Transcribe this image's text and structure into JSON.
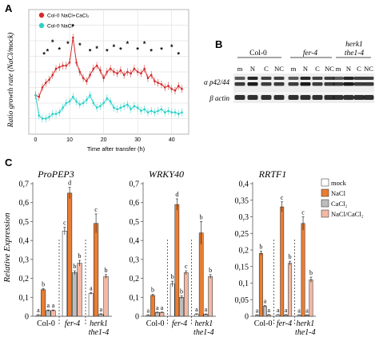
{
  "panel_labels": {
    "a": "A",
    "b": "B",
    "c": "C"
  },
  "chart_data": [
    {
      "type": "line",
      "ylabel": "Ratio growth rate (NaCl/mock)",
      "xlabel": "Time after transfer (h)",
      "xlim": [
        -2,
        45
      ],
      "ylim": [
        0.2,
        1.0
      ],
      "xticks": [
        "0",
        "10",
        "20",
        "30",
        "40"
      ],
      "grid": true,
      "legend_position": "top-left",
      "x": [
        0,
        1,
        2,
        3,
        4,
        5,
        6,
        7,
        8,
        9,
        10,
        11,
        12,
        13,
        14,
        15,
        16,
        17,
        18,
        19,
        20,
        21,
        22,
        23,
        24,
        25,
        26,
        27,
        28,
        29,
        30,
        31,
        32,
        33,
        34,
        35,
        36,
        37,
        38,
        39,
        40,
        41,
        42,
        43
      ],
      "series": [
        {
          "name": "Col-0 NaCl+CaCl₂",
          "color": "#d42a2a",
          "values": [
            0.45,
            0.44,
            0.5,
            0.53,
            0.55,
            0.58,
            0.62,
            0.63,
            0.64,
            0.64,
            0.66,
            0.82,
            0.66,
            0.6,
            0.56,
            0.54,
            0.58,
            0.62,
            0.64,
            0.61,
            0.56,
            0.6,
            0.62,
            0.6,
            0.59,
            0.61,
            0.58,
            0.6,
            0.59,
            0.62,
            0.6,
            0.59,
            0.62,
            0.56,
            0.58,
            0.54,
            0.53,
            0.52,
            0.5,
            0.51,
            0.49,
            0.48,
            0.51,
            0.49
          ]
        },
        {
          "name": "Col-0 NaCl",
          "color": "#2ad1c9",
          "values": [
            0.45,
            0.32,
            0.3,
            0.3,
            0.31,
            0.33,
            0.33,
            0.34,
            0.37,
            0.4,
            0.41,
            0.44,
            0.41,
            0.39,
            0.4,
            0.42,
            0.45,
            0.4,
            0.37,
            0.38,
            0.4,
            0.43,
            0.41,
            0.37,
            0.36,
            0.37,
            0.38,
            0.39,
            0.36,
            0.38,
            0.37,
            0.35,
            0.36,
            0.34,
            0.35,
            0.34,
            0.35,
            0.36,
            0.34,
            0.35,
            0.34,
            0.34,
            0.33,
            0.34
          ]
        }
      ],
      "significance_marks": [
        {
          "x": 2.5,
          "y": 0.71,
          "label": "*"
        },
        {
          "x": 3.5,
          "y": 0.73,
          "label": "*"
        },
        {
          "x": 5,
          "y": 0.79,
          "label": "*"
        },
        {
          "x": 7,
          "y": 0.74,
          "label": "*"
        },
        {
          "x": 9.5,
          "y": 0.78,
          "label": "*"
        },
        {
          "x": 11,
          "y": 0.89,
          "label": "*"
        },
        {
          "x": 13,
          "y": 0.77,
          "label": "*"
        },
        {
          "x": 16,
          "y": 0.73,
          "label": "*"
        },
        {
          "x": 18,
          "y": 0.75,
          "label": "*"
        },
        {
          "x": 21,
          "y": 0.73,
          "label": "*"
        },
        {
          "x": 23,
          "y": 0.76,
          "label": "*"
        },
        {
          "x": 25,
          "y": 0.74,
          "label": "*"
        },
        {
          "x": 27,
          "y": 0.78,
          "label": "*"
        },
        {
          "x": 30,
          "y": 0.74,
          "label": "*"
        },
        {
          "x": 32,
          "y": 0.78,
          "label": "*"
        },
        {
          "x": 34,
          "y": 0.73,
          "label": "*"
        },
        {
          "x": 37,
          "y": 0.74,
          "label": "*"
        },
        {
          "x": 40,
          "y": 0.76,
          "label": "*"
        },
        {
          "x": 42,
          "y": 0.71,
          "label": "*"
        }
      ]
    },
    {
      "type": "bar",
      "title": "ProPEP3",
      "ylabel": "Relative Expression",
      "ylim": [
        0,
        0.7
      ],
      "yticks": [
        "0",
        "0,1",
        "0,2",
        "0,3",
        "0,4",
        "0,5",
        "0,6",
        "0,7"
      ],
      "groups": [
        "Col-0",
        "fer-4",
        "herk1 the1-4"
      ],
      "series": [
        {
          "name": "mock",
          "values": [
            0.005,
            0.45,
            0.12
          ],
          "errors": [
            0.003,
            0.02,
            0.005
          ],
          "letters": [
            "a",
            "c",
            "a"
          ]
        },
        {
          "name": "NaCl",
          "values": [
            0.14,
            0.65,
            0.49
          ],
          "errors": [
            0.006,
            0.03,
            0.05
          ],
          "letters": [
            "b",
            "d",
            "c"
          ]
        },
        {
          "name": "CaCl₂",
          "values": [
            0.03,
            0.23,
            0.01
          ],
          "errors": [
            0.003,
            0.01,
            0.003
          ],
          "letters": [
            "a",
            "b",
            "a"
          ]
        },
        {
          "name": "NaCl/CaCl₂",
          "values": [
            0.03,
            0.28,
            0.21
          ],
          "errors": [
            0.003,
            0.015,
            0.01
          ],
          "letters": [
            "a",
            "b",
            "b"
          ]
        }
      ]
    },
    {
      "type": "bar",
      "title": "WRKY40",
      "ylabel": "",
      "ylim": [
        0,
        0.7
      ],
      "yticks": [
        "0",
        "0,1",
        "0,2",
        "0,3",
        "0,4",
        "0,5",
        "0,6",
        "0,7"
      ],
      "groups": [
        "Col-0",
        "fer-4",
        "herk1 the1-4"
      ],
      "series": [
        {
          "name": "mock",
          "values": [
            0.005,
            0.17,
            0.01
          ],
          "errors": [
            0.002,
            0.015,
            0.003
          ],
          "letters": [
            "a",
            "b",
            "a"
          ]
        },
        {
          "name": "NaCl",
          "values": [
            0.11,
            0.59,
            0.44
          ],
          "errors": [
            0.005,
            0.03,
            0.06
          ],
          "letters": [
            "b",
            "d",
            "b"
          ]
        },
        {
          "name": "CaCl₂",
          "values": [
            0.02,
            0.1,
            0.01
          ],
          "errors": [
            0.002,
            0.008,
            0.002
          ],
          "letters": [
            "a",
            "b",
            "a"
          ]
        },
        {
          "name": "NaCl/CaCl₂",
          "values": [
            0.02,
            0.23,
            0.21
          ],
          "errors": [
            0.002,
            0.01,
            0.01
          ],
          "letters": [
            "a",
            "c",
            "b"
          ]
        }
      ]
    },
    {
      "type": "bar",
      "title": "RRTF1",
      "ylabel": "",
      "ylim": [
        0,
        0.4
      ],
      "yticks": [
        "0",
        "0,05",
        "0,1",
        "0,15",
        "0,2",
        "0,25",
        "0,3",
        "0,35",
        "0,4"
      ],
      "groups": [
        "Col-0",
        "fer-4",
        "herk1 the1-4"
      ],
      "series": [
        {
          "name": "mock",
          "values": [
            0.003,
            0.004,
            0.003
          ],
          "errors": [
            0.001,
            0.001,
            0.001
          ],
          "letters": [
            "a",
            "a",
            "a"
          ]
        },
        {
          "name": "NaCl",
          "values": [
            0.19,
            0.33,
            0.28
          ],
          "errors": [
            0.006,
            0.015,
            0.02
          ],
          "letters": [
            "b",
            "c",
            "c"
          ]
        },
        {
          "name": "CaCl₂",
          "values": [
            0.03,
            0.004,
            0.003
          ],
          "errors": [
            0.002,
            0.001,
            0.001
          ],
          "letters": [
            "a",
            "a",
            "a"
          ]
        },
        {
          "name": "NaCl/CaCl₂",
          "values": [
            0.004,
            0.16,
            0.11
          ],
          "errors": [
            0.001,
            0.006,
            0.008
          ],
          "letters": [
            "a",
            "b",
            "b"
          ]
        }
      ]
    }
  ],
  "bar_colors": {
    "mock": "#ffffff",
    "NaCl": "#ea7d33",
    "CaCl₂": "#bdbdbd",
    "NaCl/CaCl₂": "#f3b9a4"
  },
  "bar_legend": [
    "mock",
    "NaCl",
    "CaCl₂",
    "NaCl/CaCl₂"
  ],
  "blot": {
    "group_labels": [
      "Col-0",
      "fer-4",
      "herk1",
      "the1-4"
    ],
    "lane_labels": [
      "m",
      "N",
      "C",
      "NC",
      "m",
      "N",
      "C",
      "NC",
      "m",
      "N",
      "C",
      "NC"
    ],
    "row_labels": [
      "α p42/44",
      "β actin"
    ]
  },
  "genotype_labels": {
    "col0": "Col-0",
    "fer4": "fer-4",
    "herk1": "herk1",
    "the1": "the1-4"
  }
}
